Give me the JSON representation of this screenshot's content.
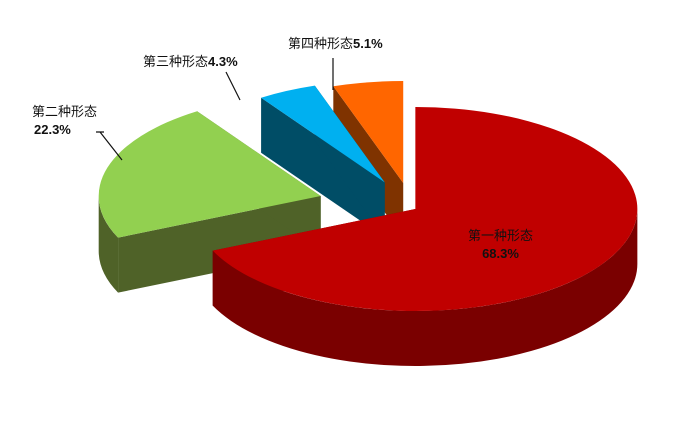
{
  "chart_data": {
    "type": "pie",
    "style": "3d-exploded",
    "categories": [
      "第一种形态",
      "第二种形态",
      "第三种形态",
      "第四种形态"
    ],
    "values": [
      68.3,
      22.3,
      4.3,
      5.1
    ],
    "value_labels": [
      "68.3%",
      "22.3%",
      "4.3%",
      "5.1%"
    ],
    "colors": [
      "#c00000",
      "#92d050",
      "#00b0f0",
      "#ff6600"
    ],
    "side_colors": [
      "#7a0000",
      "#4f6228",
      "#004d66",
      "#7f3300"
    ],
    "legend": "none"
  }
}
